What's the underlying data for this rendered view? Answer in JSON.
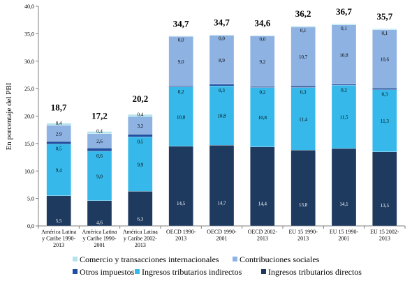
{
  "chart_data": {
    "type": "bar",
    "stacked": true,
    "ylabel": "En porcentaje del PBI",
    "ylim": [
      0,
      40
    ],
    "yticks": [
      "0,0",
      "5,0",
      "10,0",
      "15,0",
      "20,0",
      "25,0",
      "30,0",
      "35,0",
      "40,0"
    ],
    "categories": [
      [
        "América Latina",
        "y Caribe 1990-",
        "2013"
      ],
      [
        "América Latina",
        "y Caribe 1990-",
        "2001"
      ],
      [
        "América Latina",
        "y Caribe 2002-",
        "2013"
      ],
      [
        "OECD 1990-",
        "2013"
      ],
      [
        "OECD 1990-",
        "2001"
      ],
      [
        "OECD 2002-",
        "2013"
      ],
      [
        "EU 15 1990-",
        "2013"
      ],
      [
        "EU 15 1990-",
        "2001"
      ],
      [
        "EU 15 2002-",
        "2013"
      ]
    ],
    "totals": [
      "18,7",
      "17,2",
      "20,2",
      "34,7",
      "34,7",
      "34,6",
      "36,2",
      "36,7",
      "35,7"
    ],
    "series": [
      {
        "name": "Ingresos tributarios directos",
        "color": "#1f3a5f",
        "label_color": "#ffffff",
        "values": [
          5.5,
          4.6,
          6.3,
          14.5,
          14.7,
          14.4,
          13.8,
          14.1,
          13.5
        ],
        "labels": [
          "5,5",
          "4,6",
          "6,3",
          "14,5",
          "14,7",
          "14,4",
          "13,8",
          "14,1",
          "13,5"
        ]
      },
      {
        "name": "Ingresos tributarios indirectos",
        "color": "#36b9ea",
        "label_color": "#000000",
        "values": [
          9.4,
          9.0,
          9.9,
          10.8,
          10.8,
          10.8,
          11.4,
          11.5,
          11.3
        ],
        "labels": [
          "9,4",
          "9,0",
          "9,9",
          "10,8",
          "10,8",
          "10,8",
          "11,4",
          "11,5",
          "11,3"
        ]
      },
      {
        "name": "Otros impuestos",
        "color": "#1f4fa0",
        "label_color": "#000000",
        "values": [
          0.5,
          0.6,
          0.5,
          0.2,
          0.3,
          0.2,
          0.3,
          0.2,
          0.3
        ],
        "labels": [
          "0,5",
          "0,6",
          "0,5",
          "0,2",
          "0,3",
          "0,2",
          "0,3",
          "0,2",
          "0,3"
        ]
      },
      {
        "name": "Contribuciones sociales",
        "color": "#8eb2e2",
        "label_color": "#000000",
        "values": [
          2.9,
          2.6,
          3.2,
          9.0,
          8.9,
          9.2,
          10.7,
          10.8,
          10.6
        ],
        "labels": [
          "2,9",
          "2,6",
          "3,2",
          "9,0",
          "8,9",
          "9,2",
          "10,7",
          "10,8",
          "10,6"
        ]
      },
      {
        "name": "Comercio y transacciones internacionales",
        "color": "#b3e3ee",
        "label_color": "#000000",
        "values": [
          0.4,
          0.4,
          0.4,
          0.0,
          0.0,
          0.0,
          0.1,
          0.1,
          0.1
        ],
        "labels": [
          "0,4",
          "0,4",
          "0,4",
          "0,0",
          "0,0",
          "0,0",
          "0,1",
          "0,1",
          "0,1"
        ]
      }
    ],
    "legend": {
      "placement": "bottom",
      "order": [
        4,
        3,
        2,
        1,
        0
      ]
    },
    "grid": false
  }
}
